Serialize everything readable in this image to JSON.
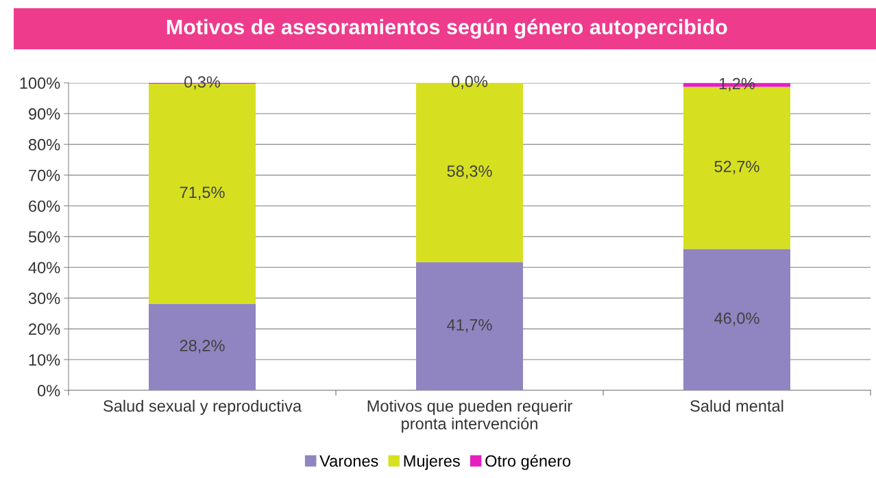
{
  "chart_data": {
    "type": "bar",
    "stacked": true,
    "title": "Motivos de asesoramientos según género autopercibido",
    "categories": [
      "Salud sexual y reproductiva",
      "Motivos que pueden requerir\npronta intervención",
      "Salud mental"
    ],
    "series": [
      {
        "name": "Varones",
        "color": "#9085c0",
        "values": [
          28.2,
          41.7,
          46.0
        ],
        "value_labels": [
          "28,2%",
          "41,7%",
          "46,0%"
        ]
      },
      {
        "name": "Mujeres",
        "color": "#d6e021",
        "values": [
          71.5,
          58.3,
          52.7
        ],
        "value_labels": [
          "71,5%",
          "58,3%",
          "52,7%"
        ]
      },
      {
        "name": "Otro género",
        "color": "#e61fbf",
        "values": [
          0.3,
          0.0,
          1.2
        ],
        "value_labels": [
          "0,3%",
          "0,0%",
          "1,2%"
        ]
      }
    ],
    "ylim": [
      0,
      100
    ],
    "yticks": [
      {
        "value": 0,
        "label": "0%"
      },
      {
        "value": 10,
        "label": "10%"
      },
      {
        "value": 20,
        "label": "20%"
      },
      {
        "value": 30,
        "label": "30%"
      },
      {
        "value": 40,
        "label": "40%"
      },
      {
        "value": 50,
        "label": "50%"
      },
      {
        "value": 60,
        "label": "60%"
      },
      {
        "value": 70,
        "label": "70%"
      },
      {
        "value": 80,
        "label": "80%"
      },
      {
        "value": 90,
        "label": "90%"
      },
      {
        "value": 100,
        "label": "100%"
      }
    ],
    "grid": "y",
    "legend": "bottom"
  }
}
